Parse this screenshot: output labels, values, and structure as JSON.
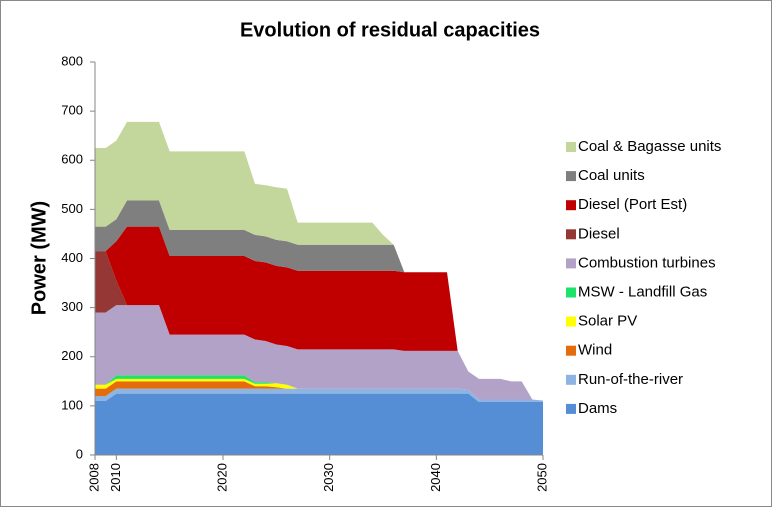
{
  "chart_data": {
    "type": "stacked_area",
    "title": "Evolution of residual capacities",
    "y_label": "Power  (MW)",
    "categories": [
      "2008",
      null,
      "2010",
      null,
      null,
      null,
      null,
      null,
      null,
      null,
      null,
      null,
      "2020",
      null,
      null,
      null,
      null,
      null,
      null,
      null,
      null,
      null,
      "2030",
      null,
      null,
      null,
      null,
      null,
      null,
      null,
      null,
      null,
      "2040",
      null,
      null,
      null,
      null,
      null,
      null,
      null,
      null,
      null,
      "2050"
    ],
    "ylim": [
      0,
      800
    ],
    "yticks": [
      0,
      100,
      200,
      300,
      400,
      500,
      600,
      700,
      800
    ],
    "legend": "right",
    "series": [
      {
        "name": "Dams",
        "color": "#558ed5",
        "values": [
          110,
          110,
          125,
          125,
          125,
          125,
          125,
          125,
          125,
          125,
          125,
          125,
          125,
          125,
          125,
          125,
          125,
          125,
          125,
          125,
          125,
          125,
          125,
          125,
          125,
          125,
          125,
          125,
          125,
          125,
          125,
          125,
          125,
          125,
          125,
          125,
          108,
          108,
          108,
          108,
          108,
          108,
          108
        ]
      },
      {
        "name": "Run-of-the-river",
        "color": "#8eb4e3",
        "values": [
          10,
          10,
          10,
          10,
          10,
          10,
          10,
          10,
          10,
          10,
          10,
          10,
          10,
          10,
          10,
          10,
          10,
          10,
          10,
          10,
          10,
          10,
          10,
          10,
          10,
          10,
          10,
          10,
          10,
          10,
          10,
          10,
          10,
          10,
          10,
          8,
          5,
          5,
          5,
          5,
          5,
          5,
          3
        ]
      },
      {
        "name": "Wind",
        "color": "#e46c0a",
        "values": [
          15,
          15,
          15,
          15,
          15,
          15,
          15,
          15,
          15,
          15,
          15,
          15,
          15,
          15,
          15,
          5,
          5,
          3,
          0,
          0,
          0,
          0,
          0,
          0,
          0,
          0,
          0,
          0,
          0,
          0,
          0,
          0,
          0,
          0,
          0,
          0,
          0,
          0,
          0,
          0,
          0,
          0,
          0
        ]
      },
      {
        "name": "Solar PV",
        "color": "#ffff00",
        "values": [
          8,
          8,
          5,
          5,
          5,
          5,
          5,
          5,
          5,
          5,
          5,
          5,
          5,
          5,
          5,
          5,
          5,
          8,
          8,
          0,
          0,
          0,
          0,
          0,
          0,
          0,
          0,
          0,
          0,
          0,
          0,
          0,
          0,
          0,
          0,
          0,
          0,
          0,
          0,
          0,
          0,
          0,
          0
        ]
      },
      {
        "name": "MSW - Landfill Gas",
        "color": "#1ee36a",
        "values": [
          0,
          0,
          7,
          7,
          7,
          7,
          7,
          7,
          7,
          7,
          7,
          7,
          7,
          7,
          7,
          3,
          3,
          0,
          0,
          0,
          0,
          0,
          0,
          0,
          0,
          0,
          0,
          0,
          0,
          0,
          0,
          0,
          0,
          0,
          0,
          0,
          0,
          0,
          0,
          0,
          0,
          0,
          0
        ]
      },
      {
        "name": "Combustion turbines",
        "color": "#b3a2c7",
        "values": [
          147,
          147,
          143,
          143,
          143,
          143,
          143,
          83,
          83,
          83,
          83,
          83,
          83,
          83,
          83,
          87,
          84,
          79,
          79,
          80,
          80,
          80,
          80,
          80,
          80,
          80,
          80,
          80,
          80,
          77,
          77,
          77,
          77,
          77,
          77,
          37,
          42,
          42,
          42,
          37,
          37,
          0,
          0
        ]
      },
      {
        "name": "Diesel",
        "color": "#953735",
        "values": [
          125,
          125,
          50,
          0,
          0,
          0,
          0,
          0,
          0,
          0,
          0,
          0,
          0,
          0,
          0,
          0,
          0,
          0,
          0,
          0,
          0,
          0,
          0,
          0,
          0,
          0,
          0,
          0,
          0,
          0,
          0,
          0,
          0,
          0,
          0,
          0,
          0,
          0,
          0,
          0,
          0,
          0,
          0
        ]
      },
      {
        "name": "Diesel (Port Est)",
        "color": "#c00000",
        "values": [
          0,
          0,
          80,
          160,
          160,
          160,
          160,
          160,
          160,
          160,
          160,
          160,
          160,
          160,
          160,
          160,
          160,
          160,
          160,
          160,
          160,
          160,
          160,
          160,
          160,
          160,
          160,
          160,
          160,
          160,
          160,
          160,
          160,
          160,
          0,
          0,
          0,
          0,
          0,
          0,
          0,
          0,
          0
        ]
      },
      {
        "name": "Coal units",
        "color": "#7f7f7f",
        "values": [
          50,
          50,
          45,
          53,
          53,
          53,
          53,
          53,
          53,
          53,
          53,
          53,
          53,
          53,
          53,
          53,
          53,
          53,
          53,
          53,
          53,
          53,
          53,
          53,
          53,
          53,
          53,
          53,
          53,
          0,
          0,
          0,
          0,
          0,
          0,
          0,
          0,
          0,
          0,
          0,
          0,
          0,
          0
        ]
      },
      {
        "name": "Coal & Bagasse units",
        "color": "#c3d69b",
        "values": [
          160,
          160,
          160,
          160,
          160,
          160,
          160,
          160,
          160,
          160,
          160,
          160,
          160,
          160,
          160,
          104,
          104,
          107,
          107,
          45,
          45,
          45,
          45,
          45,
          45,
          45,
          45,
          20,
          0,
          0,
          0,
          0,
          0,
          0,
          0,
          0,
          0,
          0,
          0,
          0,
          0,
          0,
          0
        ]
      }
    ]
  }
}
